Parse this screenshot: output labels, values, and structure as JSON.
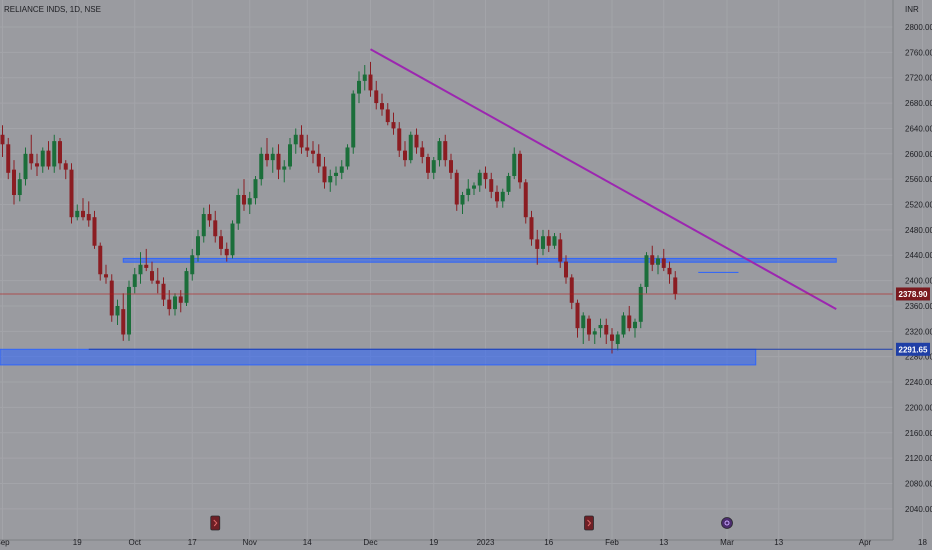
{
  "chart_data": {
    "type": "candlestick",
    "title": "RELIANCE INDS, 1D, NSE",
    "currency": "INR",
    "ylim": [
      2020,
      2830
    ],
    "y_ticks": [
      2040,
      2080,
      2120,
      2160,
      2200,
      2240,
      2280,
      2320,
      2360,
      2400,
      2440,
      2480,
      2520,
      2560,
      2600,
      2640,
      2680,
      2720,
      2760,
      2800
    ],
    "x_ticks": [
      {
        "bar": 0,
        "label": "Sep"
      },
      {
        "bar": 13,
        "label": "19"
      },
      {
        "bar": 23,
        "label": "Oct"
      },
      {
        "bar": 33,
        "label": "17"
      },
      {
        "bar": 43,
        "label": "Nov"
      },
      {
        "bar": 53,
        "label": "14"
      },
      {
        "bar": 64,
        "label": "Dec"
      },
      {
        "bar": 75,
        "label": "19"
      },
      {
        "bar": 84,
        "label": "2023"
      },
      {
        "bar": 95,
        "label": "16"
      },
      {
        "bar": 106,
        "label": "Feb"
      },
      {
        "bar": 115,
        "label": "13"
      },
      {
        "bar": 126,
        "label": "Mar"
      },
      {
        "bar": 135,
        "label": "13"
      },
      {
        "bar": 150,
        "label": "Apr"
      },
      {
        "bar": 160,
        "label": "18"
      }
    ],
    "candles": [
      [
        2630,
        2645,
        2595,
        2615
      ],
      [
        2615,
        2625,
        2560,
        2570
      ],
      [
        2575,
        2590,
        2520,
        2535
      ],
      [
        2535,
        2570,
        2525,
        2560
      ],
      [
        2560,
        2610,
        2550,
        2600
      ],
      [
        2600,
        2630,
        2575,
        2585
      ],
      [
        2585,
        2600,
        2565,
        2580
      ],
      [
        2580,
        2610,
        2570,
        2605
      ],
      [
        2605,
        2620,
        2575,
        2580
      ],
      [
        2580,
        2630,
        2570,
        2620
      ],
      [
        2620,
        2625,
        2575,
        2585
      ],
      [
        2585,
        2590,
        2560,
        2575
      ],
      [
        2575,
        2585,
        2490,
        2500
      ],
      [
        2500,
        2520,
        2495,
        2510
      ],
      [
        2510,
        2530,
        2495,
        2500
      ],
      [
        2505,
        2525,
        2485,
        2495
      ],
      [
        2500,
        2510,
        2450,
        2455
      ],
      [
        2455,
        2460,
        2400,
        2410
      ],
      [
        2410,
        2425,
        2395,
        2405
      ],
      [
        2400,
        2410,
        2335,
        2345
      ],
      [
        2345,
        2370,
        2330,
        2360
      ],
      [
        2355,
        2380,
        2305,
        2315
      ],
      [
        2315,
        2400,
        2305,
        2390
      ],
      [
        2390,
        2420,
        2380,
        2410
      ],
      [
        2410,
        2445,
        2395,
        2425
      ],
      [
        2425,
        2450,
        2415,
        2420
      ],
      [
        2415,
        2430,
        2395,
        2400
      ],
      [
        2400,
        2420,
        2380,
        2395
      ],
      [
        2395,
        2405,
        2360,
        2370
      ],
      [
        2370,
        2385,
        2345,
        2355
      ],
      [
        2355,
        2380,
        2345,
        2375
      ],
      [
        2375,
        2385,
        2350,
        2365
      ],
      [
        2365,
        2420,
        2360,
        2415
      ],
      [
        2410,
        2450,
        2400,
        2440
      ],
      [
        2440,
        2480,
        2430,
        2470
      ],
      [
        2470,
        2515,
        2460,
        2505
      ],
      [
        2505,
        2520,
        2485,
        2495
      ],
      [
        2495,
        2510,
        2460,
        2470
      ],
      [
        2470,
        2480,
        2440,
        2450
      ],
      [
        2450,
        2460,
        2430,
        2440
      ],
      [
        2440,
        2495,
        2435,
        2490
      ],
      [
        2490,
        2545,
        2480,
        2535
      ],
      [
        2535,
        2560,
        2510,
        2520
      ],
      [
        2520,
        2540,
        2505,
        2530
      ],
      [
        2530,
        2565,
        2520,
        2560
      ],
      [
        2560,
        2610,
        2550,
        2600
      ],
      [
        2600,
        2625,
        2580,
        2590
      ],
      [
        2590,
        2610,
        2570,
        2600
      ],
      [
        2600,
        2615,
        2560,
        2575
      ],
      [
        2575,
        2590,
        2555,
        2580
      ],
      [
        2580,
        2625,
        2575,
        2615
      ],
      [
        2615,
        2640,
        2600,
        2630
      ],
      [
        2630,
        2645,
        2600,
        2610
      ],
      [
        2610,
        2630,
        2595,
        2605
      ],
      [
        2605,
        2620,
        2585,
        2600
      ],
      [
        2600,
        2615,
        2570,
        2580
      ],
      [
        2580,
        2595,
        2545,
        2555
      ],
      [
        2555,
        2575,
        2540,
        2565
      ],
      [
        2565,
        2580,
        2550,
        2570
      ],
      [
        2570,
        2590,
        2560,
        2580
      ],
      [
        2580,
        2615,
        2575,
        2610
      ],
      [
        2610,
        2700,
        2600,
        2695
      ],
      [
        2695,
        2730,
        2680,
        2715
      ],
      [
        2715,
        2740,
        2700,
        2725
      ],
      [
        2725,
        2745,
        2690,
        2700
      ],
      [
        2700,
        2715,
        2670,
        2680
      ],
      [
        2680,
        2695,
        2660,
        2670
      ],
      [
        2670,
        2680,
        2645,
        2650
      ],
      [
        2650,
        2665,
        2630,
        2640
      ],
      [
        2640,
        2650,
        2595,
        2605
      ],
      [
        2605,
        2620,
        2580,
        2590
      ],
      [
        2590,
        2635,
        2585,
        2630
      ],
      [
        2630,
        2640,
        2600,
        2610
      ],
      [
        2610,
        2620,
        2585,
        2595
      ],
      [
        2595,
        2600,
        2560,
        2570
      ],
      [
        2570,
        2595,
        2560,
        2590
      ],
      [
        2590,
        2625,
        2580,
        2620
      ],
      [
        2620,
        2630,
        2580,
        2590
      ],
      [
        2590,
        2600,
        2560,
        2570
      ],
      [
        2570,
        2575,
        2510,
        2520
      ],
      [
        2520,
        2540,
        2505,
        2535
      ],
      [
        2535,
        2560,
        2525,
        2545
      ],
      [
        2545,
        2555,
        2535,
        2550
      ],
      [
        2550,
        2575,
        2540,
        2570
      ],
      [
        2570,
        2580,
        2545,
        2560
      ],
      [
        2560,
        2570,
        2530,
        2540
      ],
      [
        2540,
        2550,
        2515,
        2525
      ],
      [
        2525,
        2545,
        2515,
        2540
      ],
      [
        2540,
        2570,
        2535,
        2565
      ],
      [
        2565,
        2610,
        2560,
        2600
      ],
      [
        2600,
        2605,
        2545,
        2555
      ],
      [
        2555,
        2560,
        2490,
        2500
      ],
      [
        2500,
        2510,
        2455,
        2465
      ],
      [
        2465,
        2480,
        2425,
        2450
      ],
      [
        2450,
        2480,
        2440,
        2470
      ],
      [
        2470,
        2480,
        2445,
        2455
      ],
      [
        2455,
        2475,
        2450,
        2470
      ],
      [
        2465,
        2475,
        2420,
        2430
      ],
      [
        2430,
        2440,
        2395,
        2405
      ],
      [
        2405,
        2410,
        2355,
        2365
      ],
      [
        2365,
        2370,
        2310,
        2325
      ],
      [
        2325,
        2350,
        2300,
        2345
      ],
      [
        2340,
        2345,
        2305,
        2315
      ],
      [
        2315,
        2325,
        2300,
        2320
      ],
      [
        2325,
        2340,
        2310,
        2330
      ],
      [
        2330,
        2340,
        2300,
        2315
      ],
      [
        2315,
        2325,
        2285,
        2305
      ],
      [
        2300,
        2320,
        2290,
        2315
      ],
      [
        2315,
        2350,
        2310,
        2345
      ],
      [
        2345,
        2360,
        2320,
        2325
      ],
      [
        2325,
        2340,
        2310,
        2335
      ],
      [
        2335,
        2395,
        2325,
        2390
      ],
      [
        2390,
        2445,
        2380,
        2440
      ],
      [
        2440,
        2455,
        2415,
        2425
      ],
      [
        2425,
        2440,
        2410,
        2435
      ],
      [
        2435,
        2450,
        2415,
        2420
      ],
      [
        2420,
        2430,
        2395,
        2410
      ],
      [
        2405,
        2415,
        2370,
        2378.9
      ]
    ],
    "annotations": [
      {
        "type": "trendline",
        "from": [
          64,
          2765
        ],
        "to": [
          145,
          2355
        ],
        "color": "#9c27b0"
      },
      {
        "type": "zone",
        "from_bar": 21,
        "to_bar": 145,
        "y_low": 2429,
        "y_high": 2435,
        "color": "#2962ff"
      },
      {
        "type": "zone",
        "from_bar": -1,
        "to_bar": 131,
        "y_low": 2267,
        "y_high": 2291.65,
        "color": "#2962ff"
      },
      {
        "type": "hline",
        "from_bar": 15,
        "y": 2291.65,
        "color": "#1e3fae"
      },
      {
        "type": "hline",
        "from_bar": 121,
        "to_bar": 128,
        "y": 2413,
        "color": "#2962ff"
      },
      {
        "type": "price_line",
        "y": 2378.9,
        "color": "#b71c1c"
      }
    ],
    "price_labels": [
      {
        "value": "2378.90",
        "color": "#7a1a1f"
      },
      {
        "value": "2291.65",
        "color": "#1f3fa6"
      }
    ],
    "event_markers": [
      {
        "bar": 37,
        "kind": "earnings"
      },
      {
        "bar": 102,
        "kind": "earnings"
      },
      {
        "bar": 126,
        "kind": "dividend"
      }
    ],
    "colors": {
      "up": "#1b6e3a",
      "down": "#8b1d22",
      "background": "#9a9ba0",
      "text": "#1d1e22"
    }
  }
}
